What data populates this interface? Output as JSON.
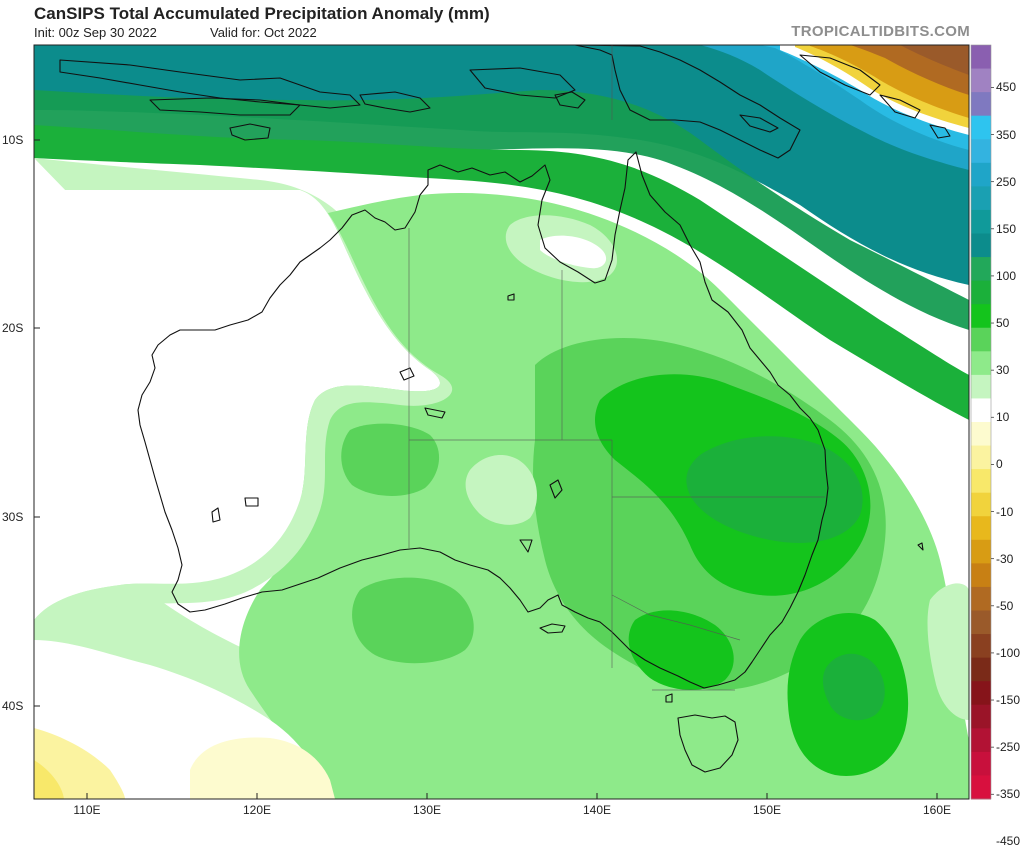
{
  "header": {
    "title": "CanSIPS Total Accumulated Precipitation Anomaly (mm)",
    "init": "Init: 00z Sep 30 2022",
    "valid": "Valid for: Oct 2022",
    "brand": "TROPICALTIDBITS.COM"
  },
  "axes": {
    "lat_labels": [
      "10S",
      "20S",
      "30S",
      "40S"
    ],
    "lon_labels": [
      "110E",
      "120E",
      "130E",
      "140E",
      "150E",
      "160E"
    ]
  },
  "colorbar": {
    "labels": [
      "450",
      "350",
      "250",
      "150",
      "100",
      "50",
      "30",
      "10",
      "0",
      "-10",
      "-30",
      "-50",
      "-100",
      "-150",
      "-250",
      "-350",
      "-450"
    ],
    "colors": [
      "#8a5fb0",
      "#a082c2",
      "#7f79c0",
      "#2ec4ef",
      "#33b3e0",
      "#1fa5c8",
      "#1aa0b2",
      "#109a9a",
      "#0c8c8c",
      "#22a85a",
      "#1bb03a",
      "#14c41c",
      "#5ad35a",
      "#8eea8a",
      "#c5f5c0",
      "#ffffff",
      "#fdfbcf",
      "#fbf3a0",
      "#f8e86a",
      "#f1d33c",
      "#e8b81c",
      "#d89c14",
      "#c88014",
      "#b06a22",
      "#9a5a2a",
      "#8a4020",
      "#7a2a18",
      "#86141a",
      "#9a1428",
      "#b21234",
      "#c8103c",
      "#d8103e"
    ]
  },
  "map": {
    "domain": "Australia",
    "lon_range": [
      107,
      162
    ],
    "lat_range": [
      -45,
      -4
    ]
  }
}
